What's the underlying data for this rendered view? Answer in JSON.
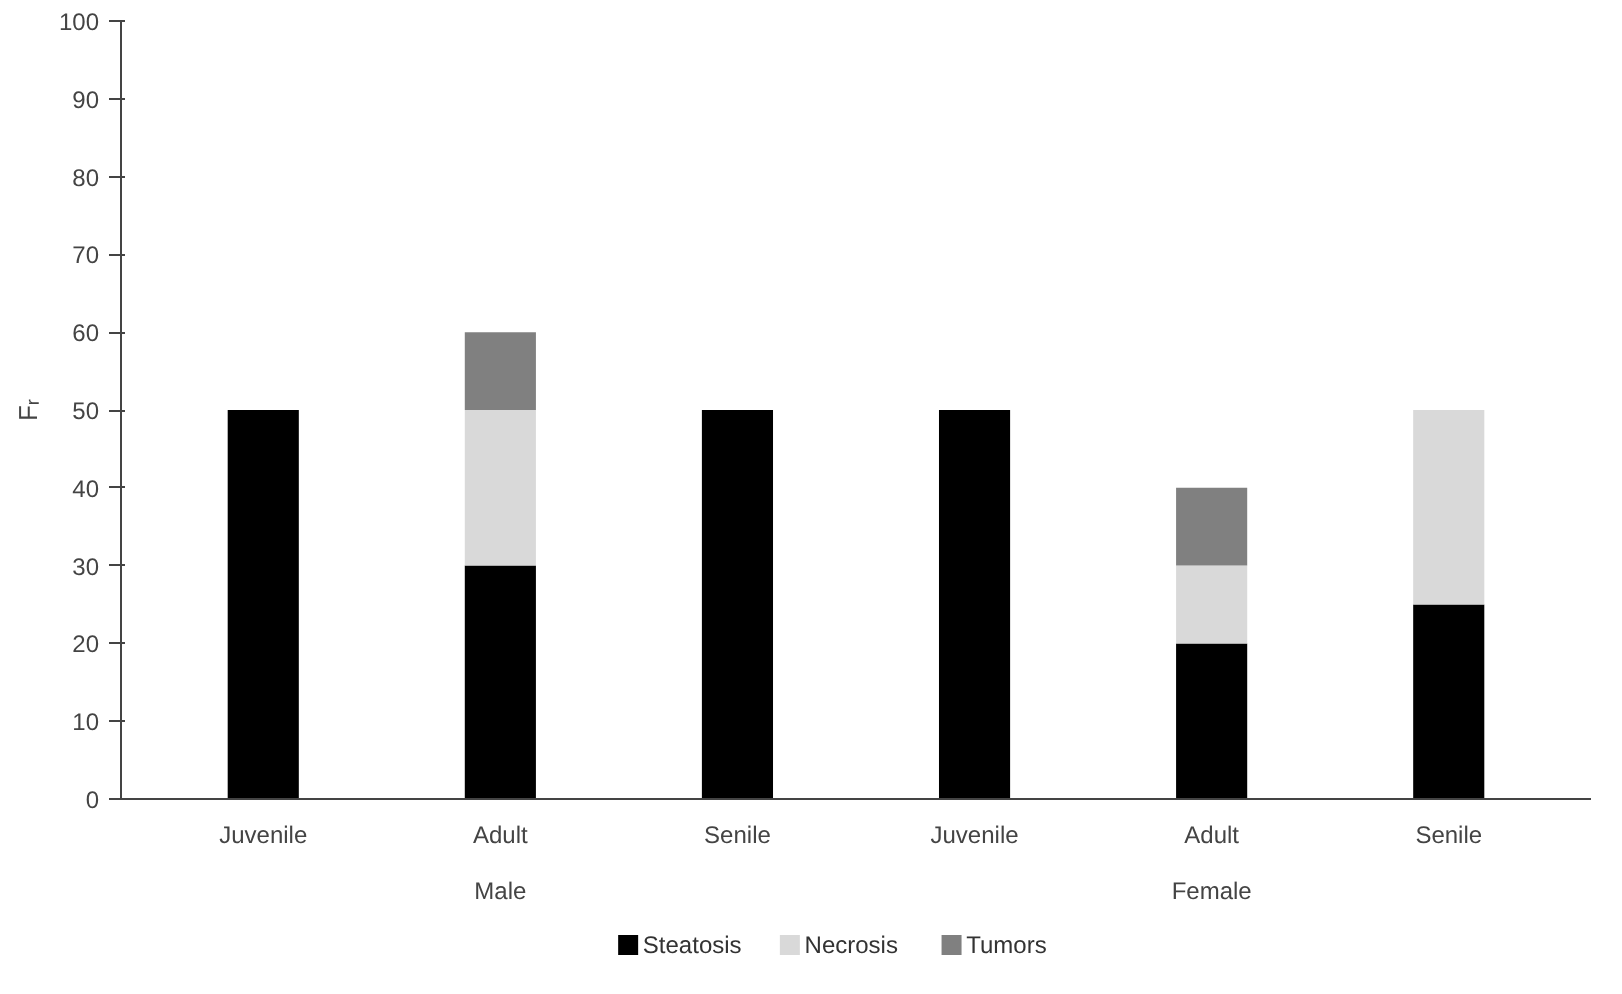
{
  "chart_data": {
    "type": "bar",
    "stacked": true,
    "ylabel": "Fᵣ",
    "categories": [
      "Juvenile",
      "Adult",
      "Senile",
      "Juvenile",
      "Adult",
      "Senile"
    ],
    "series": [
      {
        "name": "Steatosis",
        "color": "#000000",
        "values": [
          50,
          30,
          50,
          50,
          20,
          25
        ]
      },
      {
        "name": "Necrosis",
        "color": "#d9d9d9",
        "values": [
          0,
          20,
          0,
          0,
          10,
          25
        ]
      },
      {
        "name": "Tumors",
        "color": "#808080",
        "values": [
          0,
          10,
          0,
          0,
          10,
          0
        ]
      }
    ],
    "annotations": [
      "Male",
      "Female"
    ],
    "ylim": [
      0,
      100
    ],
    "yticks": [
      0,
      10,
      20,
      30,
      40,
      50,
      60,
      70,
      80,
      90,
      100
    ],
    "grid": false,
    "legend": "bottom"
  }
}
